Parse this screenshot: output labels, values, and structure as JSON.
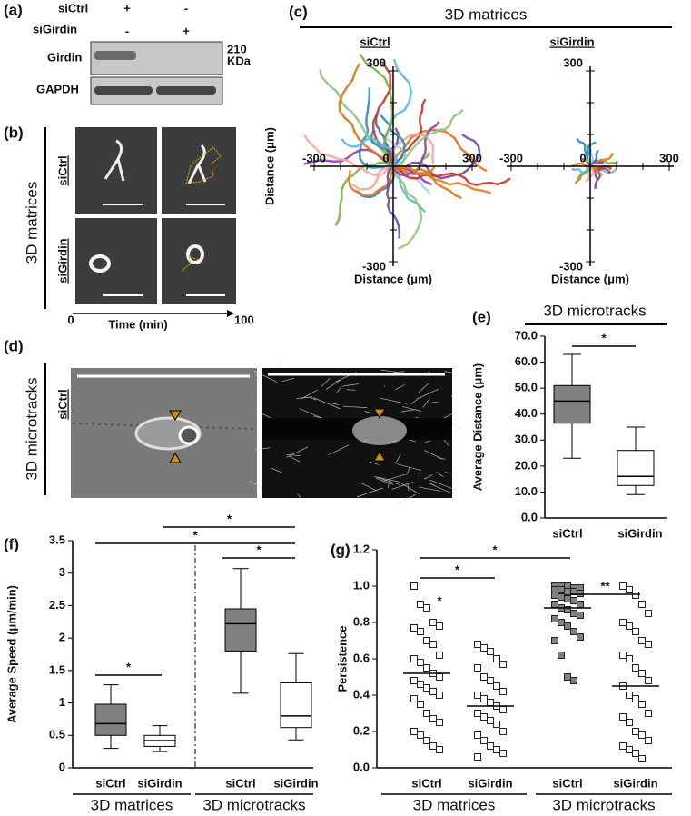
{
  "panel_a": {
    "panel_label": "(a)",
    "rows": [
      {
        "label": "siCtrl",
        "cells": [
          "+",
          "-"
        ]
      },
      {
        "label": "siGirdin",
        "cells": [
          "-",
          "+"
        ]
      }
    ],
    "blots": [
      {
        "label": "Girdin",
        "size": [
          "210",
          "KDa"
        ]
      },
      {
        "label": "GAPDH"
      }
    ]
  },
  "panel_b": {
    "panel_label": "(b)",
    "condition": "3D matrices",
    "rows": [
      "siCtrl",
      "siGirdin"
    ],
    "time_axis": {
      "start": 0,
      "label": "Time (min)",
      "end": 100
    }
  },
  "panel_c": {
    "panel_label": "(c)",
    "title": "3D matrices"
  },
  "panel_d": {
    "panel_label": "(d)",
    "condition": "3D microtracks",
    "row": "siCtrl"
  },
  "chart_data": [
    {
      "type": "tracks",
      "subtitle": "siCtrl",
      "xlabel": "Distance (μm)",
      "ylabel": "Distance (μm)",
      "xlim": [
        -300,
        300
      ],
      "ylim": [
        -300,
        300
      ],
      "xticks": [
        -300,
        0,
        300
      ],
      "yticks": [
        -300,
        300
      ]
    },
    {
      "type": "tracks",
      "subtitle": "siGirdin",
      "xlabel": "Distance (μm)",
      "xlim": [
        -300,
        300
      ],
      "ylim": [
        -300,
        300
      ],
      "xticks": [
        -300,
        0,
        300
      ],
      "yticks": [
        -300,
        300
      ]
    },
    {
      "type": "box",
      "panel_label": "(e)",
      "title": "3D microtracks",
      "ylabel": "Average Distance (μm)",
      "ylim": [
        0,
        70
      ],
      "yticks": [
        {
          "value": 0,
          "label": "0.0"
        },
        {
          "value": 10,
          "label": "10.0"
        },
        {
          "value": 20,
          "label": "20.0"
        },
        {
          "value": 30,
          "label": "30.0"
        },
        {
          "value": 40,
          "label": "40.0"
        },
        {
          "value": 50,
          "label": "50.0"
        },
        {
          "value": 60,
          "label": "60.0"
        },
        {
          "value": 70,
          "label": "70.0"
        }
      ],
      "boxes": [
        {
          "name": "siCtrl",
          "color": "#808080",
          "low": 23,
          "q1": 36.5,
          "median": 45,
          "q3": 51,
          "high": 63
        },
        {
          "name": "siGirdin",
          "color": "#ffffff",
          "low": 9,
          "q1": 12.5,
          "median": 16,
          "q3": 26,
          "high": 35
        }
      ],
      "annotations": [
        "*"
      ]
    },
    {
      "type": "box",
      "panel_label": "(f)",
      "ylabel": "Average Speed (μm/min)",
      "ylim": [
        0,
        3.5
      ],
      "yticks": [
        0,
        0.5,
        1,
        1.5,
        2,
        2.5,
        3,
        3.5
      ],
      "boxes": [
        {
          "name": "siCtrl",
          "color": "#808080",
          "low": 0.3,
          "q1": 0.5,
          "median": 0.68,
          "q3": 0.98,
          "high": 1.28
        },
        {
          "name": "siGirdin",
          "color": "#ffffff",
          "low": 0.25,
          "q1": 0.33,
          "median": 0.42,
          "q3": 0.5,
          "high": 0.65
        },
        {
          "name": "siCtrl",
          "color": "#808080",
          "low": 1.15,
          "q1": 1.8,
          "median": 2.22,
          "q3": 2.45,
          "high": 3.07
        },
        {
          "name": "siGirdin",
          "color": "#ffffff",
          "low": 0.43,
          "q1": 0.62,
          "median": 0.8,
          "q3": 1.31,
          "high": 1.76
        }
      ],
      "groups": [
        "3D matrices",
        "3D microtracks"
      ],
      "annotations": [
        "*",
        "*",
        "*",
        "*"
      ]
    },
    {
      "type": "scatter",
      "panel_label": "(g)",
      "ylabel": "Persistence",
      "ylim": [
        0,
        1.2
      ],
      "yticks": [
        {
          "value": 0,
          "label": "0.0"
        },
        {
          "value": 0.2,
          "label": "0.2"
        },
        {
          "value": 0.4,
          "label": "0.4"
        },
        {
          "value": 0.6,
          "label": "0.6"
        },
        {
          "value": 0.8,
          "label": "0.8"
        },
        {
          "value": 1,
          "label": "1.0"
        },
        {
          "value": 1.2,
          "label": "1.2"
        }
      ],
      "series": [
        {
          "name": "siCtrl",
          "color": "#ffffff",
          "median": 0.52,
          "values": [
            1.0,
            0.9,
            0.88,
            0.8,
            0.78,
            0.77,
            0.75,
            0.7,
            0.68,
            0.62,
            0.6,
            0.58,
            0.55,
            0.52,
            0.5,
            0.48,
            0.46,
            0.44,
            0.42,
            0.4,
            0.38,
            0.35,
            0.3,
            0.27,
            0.25,
            0.2,
            0.18,
            0.15,
            0.12,
            0.1
          ]
        },
        {
          "name": "siGirdin",
          "color": "#ffffff",
          "median": 0.34,
          "values": [
            0.68,
            0.66,
            0.64,
            0.6,
            0.57,
            0.55,
            0.5,
            0.48,
            0.45,
            0.42,
            0.4,
            0.38,
            0.36,
            0.34,
            0.32,
            0.3,
            0.28,
            0.26,
            0.24,
            0.2,
            0.18,
            0.15,
            0.12,
            0.1,
            0.08,
            0.06
          ]
        },
        {
          "name": "siCtrl",
          "color": "#808080",
          "median": 0.88,
          "values": [
            1.0,
            1.0,
            1.0,
            0.99,
            0.99,
            0.98,
            0.98,
            0.97,
            0.97,
            0.96,
            0.95,
            0.94,
            0.93,
            0.92,
            0.9,
            0.9,
            0.88,
            0.87,
            0.85,
            0.84,
            0.82,
            0.8,
            0.78,
            0.75,
            0.72,
            0.7,
            0.62,
            0.5,
            0.48
          ]
        },
        {
          "name": "siGirdin",
          "color": "#ffffff",
          "median": 0.45,
          "values": [
            1.0,
            0.98,
            0.95,
            0.9,
            0.85,
            0.8,
            0.78,
            0.75,
            0.7,
            0.68,
            0.62,
            0.6,
            0.55,
            0.52,
            0.48,
            0.45,
            0.4,
            0.38,
            0.35,
            0.3,
            0.28,
            0.25,
            0.2,
            0.18,
            0.15,
            0.12,
            0.1,
            0.08,
            0.05
          ]
        }
      ],
      "groups": [
        "3D matrices",
        "3D microtracks"
      ],
      "annotations": [
        "*",
        "*",
        "**",
        "*"
      ]
    }
  ]
}
